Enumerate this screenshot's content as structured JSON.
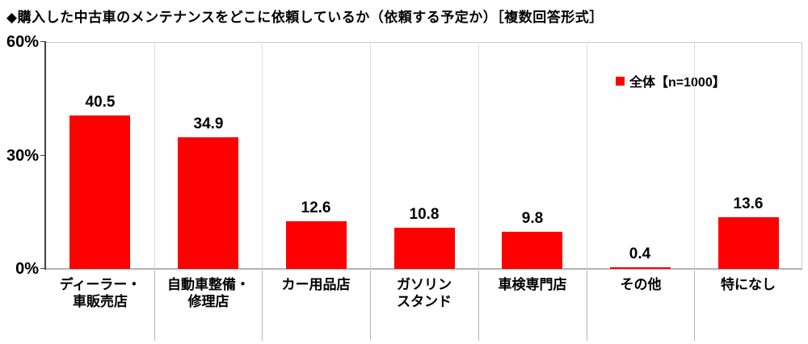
{
  "chart_data": {
    "type": "bar",
    "title": "◆購入した中古車のメンテナンスをどこに依頼しているか（依頼する予定か）［複数回答形式］",
    "legend": {
      "label": "全体【n=1000】",
      "color": "#ff0000",
      "position": "top-right-inside-plot"
    },
    "categories": [
      "ディーラー・\n車販売店",
      "自動車整備・\n修理店",
      "カー用品店",
      "ガソリン\nスタンド",
      "車検専門店",
      "その他",
      "特になし"
    ],
    "values": [
      40.5,
      34.9,
      12.6,
      10.8,
      9.8,
      0.4,
      13.6
    ],
    "value_suffix": "%",
    "ylim": [
      0,
      60
    ],
    "yticks": [
      {
        "value": 60,
        "label": "60%"
      },
      {
        "value": 30,
        "label": "30%"
      },
      {
        "value": 0,
        "label": "0%"
      }
    ],
    "bar_color": "#ff0000",
    "grid": "vertical-category-separators",
    "background": "#ffffff"
  }
}
